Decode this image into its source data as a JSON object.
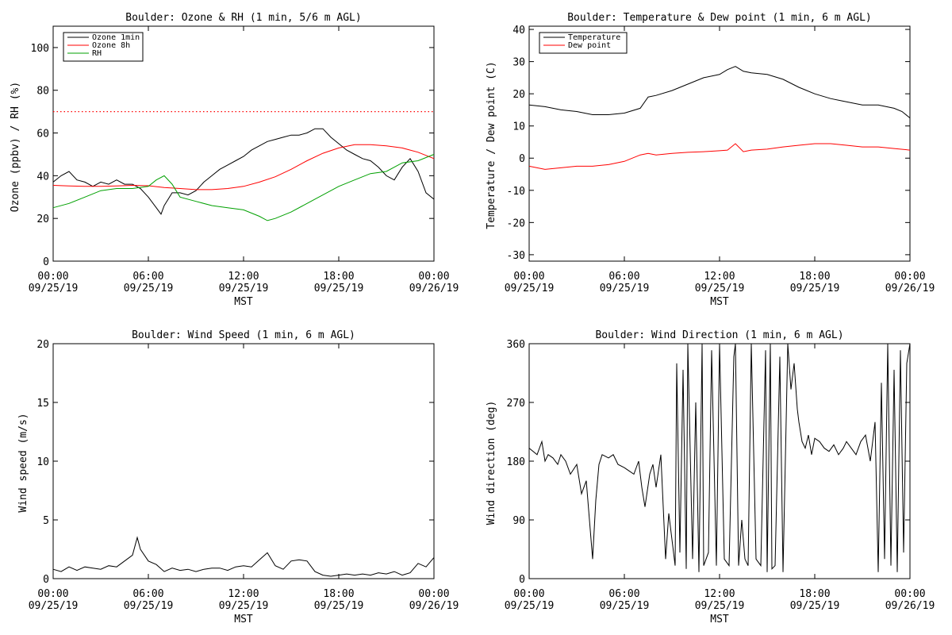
{
  "chart_data": [
    {
      "id": "ozone",
      "type": "line",
      "title": "Boulder: Ozone & RH (1 min, 5/6 m AGL)",
      "xlabel": "MST",
      "ylabel": "Ozone (ppbv) / RH (%)",
      "ylim": [
        0,
        110
      ],
      "yticks": [
        0,
        20,
        40,
        60,
        80,
        100
      ],
      "xlim_hours": [
        0,
        24
      ],
      "xticks": [
        {
          "time": "00:00",
          "date": "09/25/19"
        },
        {
          "time": "06:00",
          "date": "09/25/19"
        },
        {
          "time": "12:00",
          "date": "09/25/19"
        },
        {
          "time": "18:00",
          "date": "09/25/19"
        },
        {
          "time": "00:00",
          "date": "09/26/19"
        }
      ],
      "legend_position": "top-left",
      "reference_line": {
        "y": 70,
        "color": "#ff0000",
        "style": "dotted"
      },
      "series": [
        {
          "name": "Ozone 1min",
          "color": "#000000",
          "x": [
            0,
            0.5,
            1,
            1.5,
            2,
            2.5,
            3,
            3.5,
            4,
            4.5,
            5,
            5.5,
            6,
            6.5,
            6.8,
            7,
            7.5,
            8,
            8.5,
            9,
            9.5,
            10,
            10.5,
            11,
            11.5,
            12,
            12.5,
            13,
            13.5,
            14,
            14.5,
            15,
            15.5,
            16,
            16.5,
            17,
            17.5,
            18,
            18.5,
            19,
            19.5,
            20,
            20.5,
            21,
            21.5,
            22,
            22.5,
            23,
            23.5,
            24
          ],
          "y": [
            37,
            40,
            42,
            38,
            37,
            35,
            37,
            36,
            38,
            36,
            36,
            34,
            30,
            25,
            22,
            26,
            32,
            32,
            31,
            33,
            37,
            40,
            43,
            45,
            47,
            49,
            52,
            54,
            56,
            57,
            58,
            59,
            59,
            60,
            62,
            62,
            58,
            55,
            52,
            50,
            48,
            47,
            44,
            40,
            38,
            44,
            48,
            42,
            32,
            29
          ]
        },
        {
          "name": "Ozone 8h",
          "color": "#ff0000",
          "x": [
            0,
            1,
            2,
            3,
            4,
            5,
            6,
            7,
            8,
            9,
            10,
            11,
            12,
            13,
            14,
            15,
            16,
            17,
            18,
            19,
            20,
            21,
            22,
            23,
            24
          ],
          "y": [
            35.5,
            35.2,
            35,
            35,
            35.2,
            35.5,
            35.3,
            34.5,
            34,
            33.5,
            33.5,
            34,
            35,
            37,
            39.5,
            43,
            47,
            50.5,
            53,
            54.5,
            54.5,
            54,
            53,
            51,
            48
          ]
        },
        {
          "name": "RH",
          "color": "#00a000",
          "x": [
            0,
            1,
            2,
            3,
            4,
            5,
            6,
            6.5,
            7,
            7.5,
            8,
            9,
            10,
            11,
            12,
            13,
            13.5,
            14,
            15,
            16,
            17,
            18,
            19,
            20,
            21,
            22,
            23,
            24
          ],
          "y": [
            25,
            27,
            30,
            33,
            34,
            34,
            35,
            38,
            40,
            36,
            30,
            28,
            26,
            25,
            24,
            21,
            19,
            20,
            23,
            27,
            31,
            35,
            38,
            41,
            42,
            46,
            47,
            50
          ]
        }
      ]
    },
    {
      "id": "temperature",
      "type": "line",
      "title": "Boulder: Temperature & Dew point (1 min, 6 m AGL)",
      "xlabel": "MST",
      "ylabel": "Temperature / Dew point (C)",
      "ylim": [
        -32,
        41
      ],
      "yticks": [
        -30,
        -20,
        -10,
        0,
        10,
        20,
        30,
        40
      ],
      "xlim_hours": [
        0,
        24
      ],
      "xticks": [
        {
          "time": "00:00",
          "date": "09/25/19"
        },
        {
          "time": "06:00",
          "date": "09/25/19"
        },
        {
          "time": "12:00",
          "date": "09/25/19"
        },
        {
          "time": "18:00",
          "date": "09/25/19"
        },
        {
          "time": "00:00",
          "date": "09/26/19"
        }
      ],
      "legend_position": "top-left",
      "series": [
        {
          "name": "Temperature",
          "color": "#000000",
          "x": [
            0,
            1,
            2,
            3,
            4,
            5,
            6,
            7,
            7.5,
            8,
            9,
            10,
            11,
            12,
            12.5,
            13,
            13.5,
            14,
            15,
            16,
            17,
            18,
            19,
            20,
            21,
            22,
            23,
            23.5,
            24
          ],
          "y": [
            16.5,
            16,
            15,
            14.5,
            13.5,
            13.5,
            14,
            15.5,
            19,
            19.5,
            21,
            23,
            25,
            26,
            27.5,
            28.5,
            27,
            26.5,
            26,
            24.5,
            22,
            20,
            18.5,
            17.5,
            16.5,
            16.5,
            15.5,
            14.5,
            12.5
          ]
        },
        {
          "name": "Dew point",
          "color": "#ff0000",
          "x": [
            0,
            1,
            2,
            3,
            4,
            5,
            6,
            7,
            7.5,
            8,
            9,
            10,
            11,
            12,
            12.5,
            13,
            13.5,
            14,
            15,
            16,
            17,
            18,
            19,
            20,
            21,
            22,
            23,
            24
          ],
          "y": [
            -2.5,
            -3.5,
            -3,
            -2.5,
            -2.5,
            -2,
            -1,
            1,
            1.5,
            1,
            1.5,
            1.8,
            2,
            2.3,
            2.5,
            4.5,
            2,
            2.5,
            2.8,
            3.5,
            4,
            4.5,
            4.5,
            4,
            3.5,
            3.5,
            3,
            2.5
          ]
        }
      ]
    },
    {
      "id": "wind_speed",
      "type": "line",
      "title": "Boulder: Wind Speed (1 min, 6 m AGL)",
      "xlabel": "MST",
      "ylabel": "Wind speed (m/s)",
      "ylim": [
        0,
        20
      ],
      "yticks": [
        0,
        5,
        10,
        15,
        20
      ],
      "xlim_hours": [
        0,
        24
      ],
      "xticks": [
        {
          "time": "00:00",
          "date": "09/25/19"
        },
        {
          "time": "06:00",
          "date": "09/25/19"
        },
        {
          "time": "12:00",
          "date": "09/25/19"
        },
        {
          "time": "18:00",
          "date": "09/25/19"
        },
        {
          "time": "00:00",
          "date": "09/26/19"
        }
      ],
      "series": [
        {
          "name": "",
          "color": "#000000",
          "x": [
            0,
            0.5,
            1,
            1.5,
            2,
            2.5,
            3,
            3.5,
            4,
            4.5,
            5,
            5.3,
            5.5,
            6,
            6.5,
            7,
            7.5,
            8,
            8.5,
            9,
            9.5,
            10,
            10.5,
            11,
            11.5,
            12,
            12.5,
            13,
            13.5,
            14,
            14.5,
            15,
            15.5,
            16,
            16.5,
            17,
            17.5,
            18,
            18.5,
            19,
            19.5,
            20,
            20.5,
            21,
            21.5,
            22,
            22.5,
            23,
            23.5,
            24
          ],
          "y": [
            0.8,
            0.6,
            1.0,
            0.7,
            1.0,
            0.9,
            0.8,
            1.1,
            1.0,
            1.5,
            2.0,
            3.5,
            2.5,
            1.5,
            1.2,
            0.6,
            0.9,
            0.7,
            0.8,
            0.6,
            0.8,
            0.9,
            0.9,
            0.7,
            1.0,
            1.1,
            1.0,
            1.6,
            2.2,
            1.1,
            0.8,
            1.5,
            1.6,
            1.5,
            0.6,
            0.3,
            0.2,
            0.3,
            0.4,
            0.3,
            0.4,
            0.3,
            0.5,
            0.4,
            0.6,
            0.3,
            0.5,
            1.3,
            1.0,
            1.8
          ]
        }
      ]
    },
    {
      "id": "wind_direction",
      "type": "line",
      "title": "Boulder: Wind Direction (1 min, 6 m AGL)",
      "xlabel": "MST",
      "ylabel": "Wind direction (deg)",
      "ylim": [
        0,
        360
      ],
      "yticks": [
        0,
        90,
        180,
        270,
        360
      ],
      "xlim_hours": [
        0,
        24
      ],
      "xticks": [
        {
          "time": "00:00",
          "date": "09/25/19"
        },
        {
          "time": "06:00",
          "date": "09/25/19"
        },
        {
          "time": "12:00",
          "date": "09/25/19"
        },
        {
          "time": "18:00",
          "date": "09/25/19"
        },
        {
          "time": "00:00",
          "date": "09/26/19"
        }
      ],
      "series": [
        {
          "name": "",
          "color": "#000000",
          "x": [
            0,
            0.5,
            0.8,
            1,
            1.2,
            1.5,
            1.8,
            2,
            2.3,
            2.6,
            3,
            3.3,
            3.6,
            3.9,
            4.0,
            4.2,
            4.4,
            4.6,
            5,
            5.3,
            5.6,
            6,
            6.3,
            6.6,
            6.9,
            7.1,
            7.3,
            7.6,
            7.8,
            8,
            8.3,
            8.6,
            8.8,
            9,
            9.2,
            9.3,
            9.5,
            9.7,
            9.9,
            10,
            10.3,
            10.5,
            10.7,
            10.9,
            11,
            11.3,
            11.5,
            11.8,
            12,
            12.3,
            12.6,
            12.9,
            13,
            13.2,
            13.4,
            13.6,
            13.8,
            14,
            14.3,
            14.6,
            14.9,
            15,
            15.2,
            15.3,
            15.5,
            15.8,
            16,
            16.3,
            16.5,
            16.7,
            16.9,
            17,
            17.2,
            17.4,
            17.6,
            17.8,
            18,
            18.3,
            18.6,
            18.9,
            19.2,
            19.5,
            19.8,
            20,
            20.3,
            20.6,
            20.9,
            21.2,
            21.5,
            21.8,
            22,
            22.2,
            22.4,
            22.6,
            22.8,
            23,
            23.2,
            23.4,
            23.6,
            23.8,
            24
          ],
          "y": [
            200,
            190,
            210,
            180,
            190,
            185,
            175,
            190,
            180,
            160,
            175,
            130,
            150,
            60,
            30,
            120,
            175,
            190,
            185,
            190,
            175,
            170,
            165,
            160,
            180,
            140,
            110,
            160,
            175,
            140,
            190,
            30,
            100,
            60,
            20,
            330,
            40,
            320,
            15,
            360,
            30,
            270,
            10,
            360,
            20,
            40,
            350,
            20,
            360,
            30,
            20,
            340,
            360,
            20,
            90,
            30,
            20,
            360,
            30,
            20,
            350,
            10,
            360,
            15,
            20,
            340,
            10,
            360,
            290,
            330,
            260,
            240,
            210,
            200,
            220,
            190,
            215,
            210,
            200,
            195,
            205,
            190,
            200,
            210,
            200,
            190,
            210,
            220,
            180,
            240,
            10,
            300,
            30,
            360,
            20,
            320,
            10,
            350,
            40,
            330,
            360
          ]
        }
      ]
    }
  ]
}
